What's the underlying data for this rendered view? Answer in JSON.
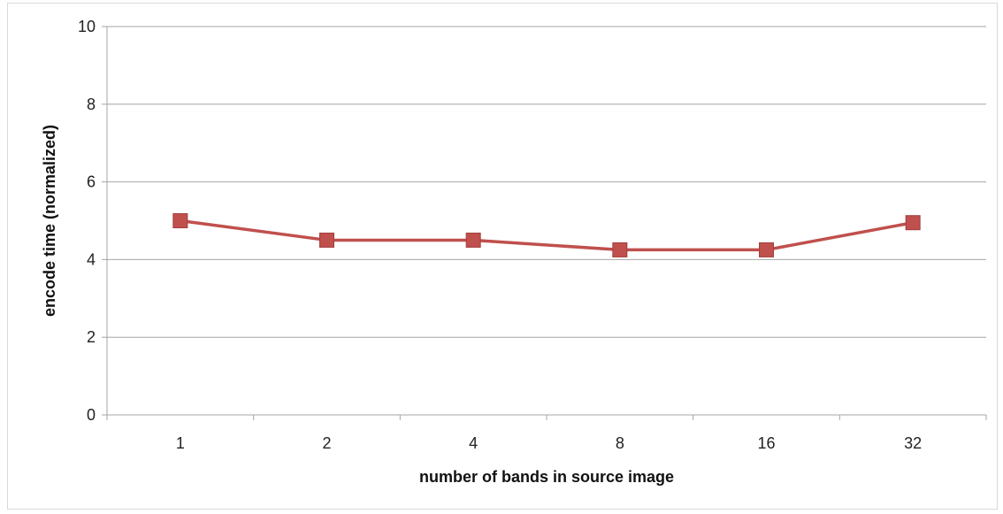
{
  "chart_data": {
    "type": "line",
    "title": "",
    "xlabel": "number of bands in source image",
    "ylabel": "encode time (normalized)",
    "categories": [
      "1",
      "2",
      "4",
      "8",
      "16",
      "32"
    ],
    "series": [
      {
        "values": [
          5.0,
          4.5,
          4.5,
          4.25,
          4.25,
          4.95
        ],
        "color": "#c0504d",
        "marker": "square"
      }
    ],
    "ylim": [
      0,
      10
    ],
    "yticks": [
      "0",
      "2",
      "4",
      "6",
      "8",
      "10"
    ],
    "grid": true,
    "legend": "none"
  }
}
